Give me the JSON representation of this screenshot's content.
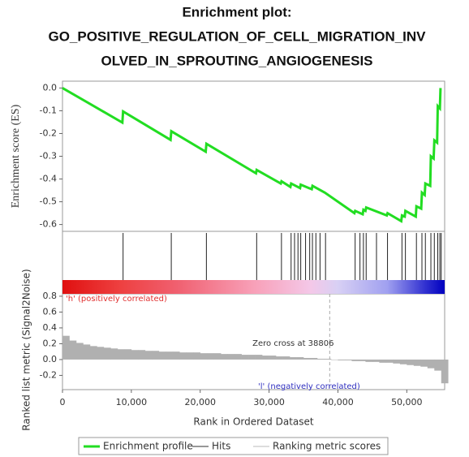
{
  "chart_data": [
    {
      "type": "line",
      "title": [
        "Enrichment plot:",
        "GO_POSITIVE_REGULATION_OF_CELL_MIGRATION_INV",
        "OLVED_IN_SPROUTING_ANGIOGENESIS"
      ],
      "ylabel": "Enrichment score (ES)",
      "x": [
        0,
        8700,
        8800,
        15700,
        15800,
        20800,
        20900,
        28100,
        28200,
        31700,
        31800,
        33100,
        33200,
        34500,
        34600,
        36200,
        36300,
        38100,
        42400,
        42500,
        43600,
        43700,
        44000,
        44100,
        47100,
        47200,
        49200,
        49300,
        49700,
        49800,
        51300,
        51400,
        52100,
        52200,
        52600,
        52700,
        53400,
        53500,
        53900,
        54000,
        54400,
        54500,
        54800,
        54900
      ],
      "series": [
        {
          "name": "Enrichment profile",
          "color": "#22dd22",
          "values": [
            0,
            -0.152,
            -0.103,
            -0.228,
            -0.19,
            -0.28,
            -0.245,
            -0.375,
            -0.36,
            -0.42,
            -0.41,
            -0.435,
            -0.42,
            -0.44,
            -0.425,
            -0.445,
            -0.43,
            -0.46,
            -0.55,
            -0.54,
            -0.555,
            -0.535,
            -0.54,
            -0.525,
            -0.56,
            -0.55,
            -0.585,
            -0.56,
            -0.565,
            -0.54,
            -0.565,
            -0.52,
            -0.53,
            -0.46,
            -0.47,
            -0.42,
            -0.43,
            -0.3,
            -0.31,
            -0.23,
            -0.24,
            -0.08,
            -0.09,
            0
          ]
        }
      ],
      "xlim": [
        0,
        55500
      ],
      "ylim": [
        -0.63,
        0.03
      ],
      "yticks": [
        {
          "value": 0,
          "label": "0.0"
        },
        -0.1,
        -0.2,
        -0.3,
        -0.4,
        -0.5,
        -0.6
      ]
    },
    {
      "type": "rug",
      "series": [
        {
          "name": "Hits",
          "color": "#222222",
          "values": [
            8800,
            15800,
            20900,
            28200,
            31800,
            33200,
            33700,
            34200,
            34600,
            35300,
            35900,
            36300,
            36800,
            37400,
            38200,
            42500,
            43200,
            43700,
            44100,
            45600,
            47200,
            49300,
            49800,
            51400,
            52200,
            52700,
            53500,
            54000,
            54500,
            54800,
            55000
          ]
        }
      ],
      "xlim": [
        0,
        55500
      ]
    },
    {
      "type": "area",
      "ylabel": "Ranked list metric (Signal2Noise)",
      "xlabel": "Rank in Ordered Dataset",
      "x": [
        0,
        1000,
        2000,
        3000,
        4000,
        5000,
        6000,
        7000,
        8000,
        9000,
        10000,
        11000,
        12000,
        13000,
        14000,
        15000,
        16000,
        17000,
        18000,
        19000,
        20000,
        21000,
        22000,
        23000,
        24000,
        25000,
        26000,
        27000,
        28000,
        29000,
        30000,
        31000,
        32000,
        33000,
        34000,
        35000,
        36000,
        37000,
        38000,
        39000,
        40000,
        41000,
        42000,
        43000,
        44000,
        45000,
        46000,
        47000,
        48000,
        49000,
        50000,
        51000,
        52000,
        53000,
        54000,
        55000
      ],
      "series": [
        {
          "name": "Ranking metric scores",
          "color": "#b0b0b0",
          "values": [
            0.3,
            0.24,
            0.21,
            0.19,
            0.17,
            0.16,
            0.15,
            0.14,
            0.13,
            0.13,
            0.12,
            0.12,
            0.11,
            0.11,
            0.1,
            0.1,
            0.1,
            0.09,
            0.09,
            0.09,
            0.08,
            0.08,
            0.08,
            0.07,
            0.07,
            0.07,
            0.06,
            0.06,
            0.06,
            0.05,
            0.05,
            0.04,
            0.04,
            0.03,
            0.03,
            0.02,
            0.02,
            0.01,
            0.01,
            0,
            -0.01,
            -0.01,
            -0.02,
            -0.02,
            -0.03,
            -0.03,
            -0.04,
            -0.04,
            -0.05,
            -0.06,
            -0.07,
            -0.08,
            -0.09,
            -0.11,
            -0.14,
            -0.3
          ]
        }
      ],
      "xlim": [
        0,
        55500
      ],
      "ylim": [
        -0.38,
        0.83
      ],
      "yticks": [
        0.8,
        0.6,
        0.4,
        0.2,
        {
          "value": 0,
          "label": "0.0"
        },
        -0.2
      ],
      "xticks": [
        0,
        {
          "value": 10000,
          "label": "10,000"
        },
        {
          "value": 20000,
          "label": "20,000"
        },
        {
          "value": 30000,
          "label": "30,000"
        },
        {
          "value": 40000,
          "label": "40,000"
        },
        {
          "value": 50000,
          "label": "50,000"
        }
      ],
      "zero_cross": {
        "value": 38806,
        "label": "Zero cross at 38806"
      },
      "annotations": [
        "'h' (positively correlated)",
        "'l' (negatively correlated)"
      ]
    }
  ]
}
